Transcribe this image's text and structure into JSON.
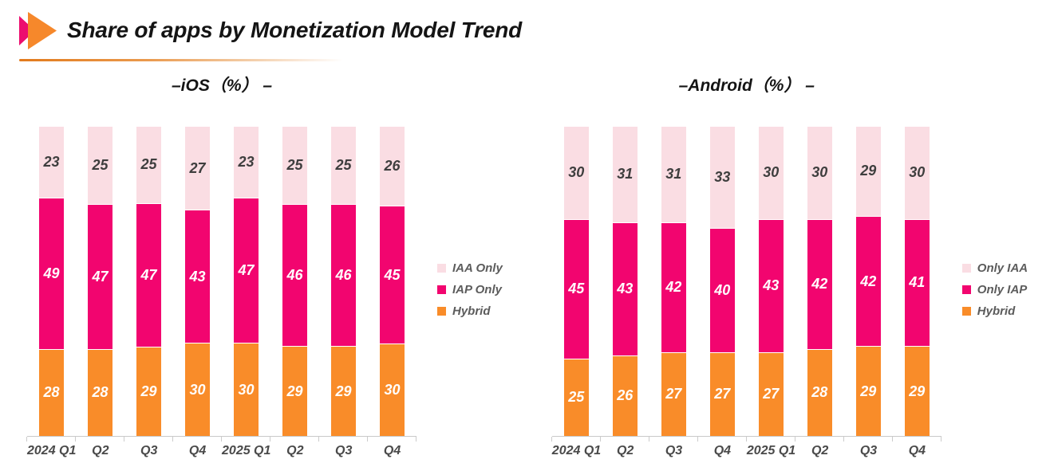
{
  "header": {
    "title": "Share of apps by Monetization Model Trend"
  },
  "logo": {
    "icon": "double-arrow-icon",
    "pink": "#ec0e6f",
    "orange": "#f6882b"
  },
  "colors": {
    "iaa": "#fadde3",
    "iap": "#f2056f",
    "hybrid": "#f98c29",
    "dark_label": "#3e3e3e",
    "white_label": "#ffffff",
    "axis": "#c9c9c9"
  },
  "chart_data": [
    {
      "type": "bar",
      "stacked": true,
      "normalized_percent": true,
      "title": "–iOS（%） –",
      "categories": [
        "2024 Q1",
        "Q2",
        "Q3",
        "Q4",
        "2025 Q1",
        "Q2",
        "Q3",
        "Q4"
      ],
      "series": [
        {
          "name": "IAA Only",
          "color": "#fadde3",
          "label_color": "#3e3e3e",
          "values": [
            23,
            25,
            25,
            27,
            23,
            25,
            25,
            26
          ]
        },
        {
          "name": "IAP Only",
          "color": "#f2056f",
          "label_color": "#ffffff",
          "values": [
            49,
            47,
            47,
            43,
            47,
            46,
            46,
            45
          ]
        },
        {
          "name": "Hybrid",
          "color": "#f98c29",
          "label_color": "#ffffff",
          "values": [
            28,
            28,
            29,
            30,
            30,
            29,
            29,
            30
          ]
        }
      ],
      "legend_position": "right",
      "ylim": [
        0,
        100
      ],
      "grid": false
    },
    {
      "type": "bar",
      "stacked": true,
      "normalized_percent": true,
      "title": "–Android（%） –",
      "categories": [
        "2024 Q1",
        "Q2",
        "Q3",
        "Q4",
        "2025 Q1",
        "Q2",
        "Q3",
        "Q4"
      ],
      "series": [
        {
          "name": "Only IAA",
          "color": "#fadde3",
          "label_color": "#3e3e3e",
          "values": [
            30,
            31,
            31,
            33,
            30,
            30,
            29,
            30
          ]
        },
        {
          "name": "Only IAP",
          "color": "#f2056f",
          "label_color": "#ffffff",
          "values": [
            45,
            43,
            42,
            40,
            43,
            42,
            42,
            41
          ]
        },
        {
          "name": "Hybrid",
          "color": "#f98c29",
          "label_color": "#ffffff",
          "values": [
            25,
            26,
            27,
            27,
            27,
            28,
            29,
            29
          ]
        }
      ],
      "legend_position": "right",
      "ylim": [
        0,
        100
      ],
      "grid": false
    }
  ]
}
